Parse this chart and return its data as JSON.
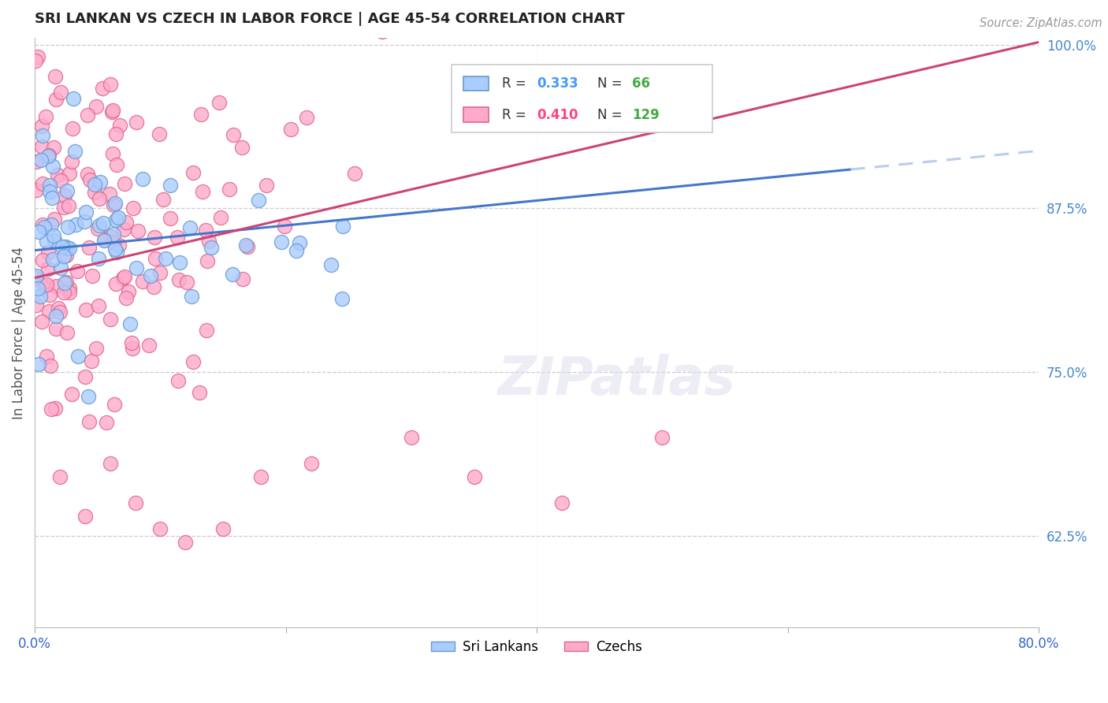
{
  "title": "SRI LANKAN VS CZECH IN LABOR FORCE | AGE 45-54 CORRELATION CHART",
  "source": "Source: ZipAtlas.com",
  "ylabel": "In Labor Force | Age 45-54",
  "xmin": 0.0,
  "xmax": 0.8,
  "ymin": 0.555,
  "ymax": 1.005,
  "right_ytick_vals": [
    1.0,
    0.875,
    0.75,
    0.625
  ],
  "right_ytick_labels": [
    "100.0%",
    "87.5%",
    "75.0%",
    "62.5%"
  ],
  "sri_lankan_color": "#aaccff",
  "sri_lankan_edge": "#6699cc",
  "czech_color": "#ffaacc",
  "czech_edge": "#dd6688",
  "sri_lankan_line_color": "#4477cc",
  "sri_lankan_dash_color": "#bbccee",
  "czech_line_color": "#cc4477",
  "sri_lankan_R": 0.333,
  "sri_lankan_N": 66,
  "czech_R": 0.41,
  "czech_N": 129,
  "legend_R_color_sl": "#4499ff",
  "legend_R_color_cz": "#ff4488",
  "legend_N_color": "#44aa44"
}
